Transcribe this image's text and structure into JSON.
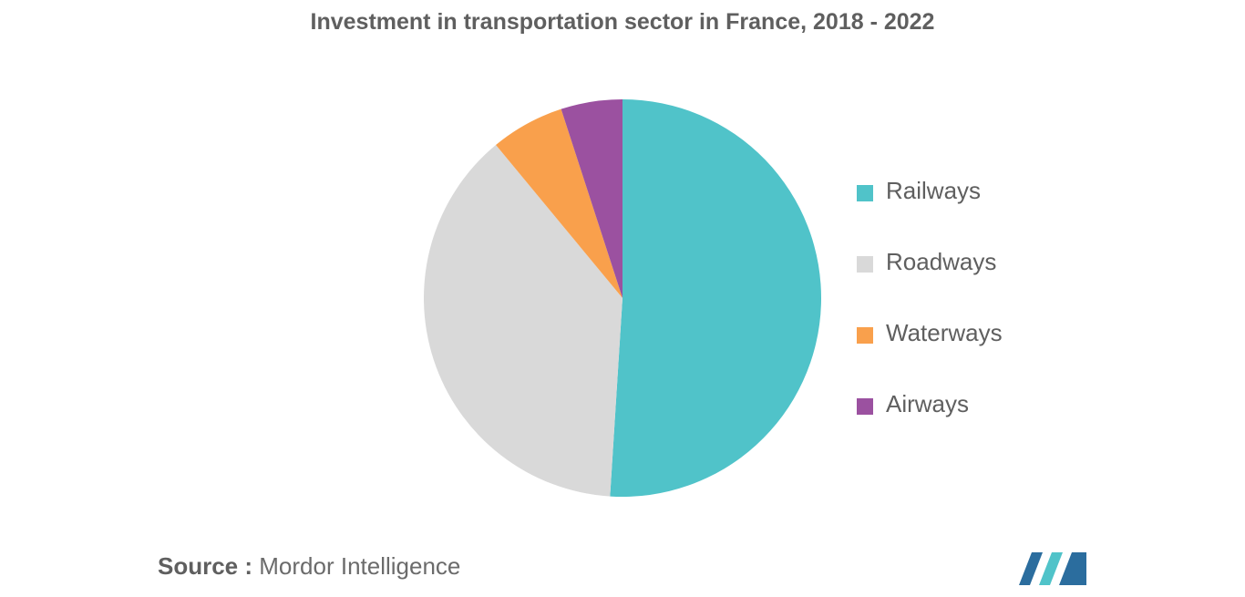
{
  "chart_data": {
    "type": "pie",
    "title": "Investment in transportation sector in France, 2018 - 2022",
    "categories": [
      "Railways",
      "Roadways",
      "Waterways",
      "Airways"
    ],
    "values": [
      51,
      38,
      6,
      5
    ],
    "colors": [
      "#50c3c9",
      "#d9d9d9",
      "#f9a04c",
      "#9b51a0"
    ],
    "start_angle_deg": 0,
    "direction": "clockwise",
    "legend_position": "right"
  },
  "source": {
    "prefix": "Source :",
    "text": "Mordor Intelligence"
  },
  "logo": {
    "icon": "mordor-intelligence-logo",
    "colors": [
      "#2b6d9e",
      "#50c3c9"
    ]
  }
}
